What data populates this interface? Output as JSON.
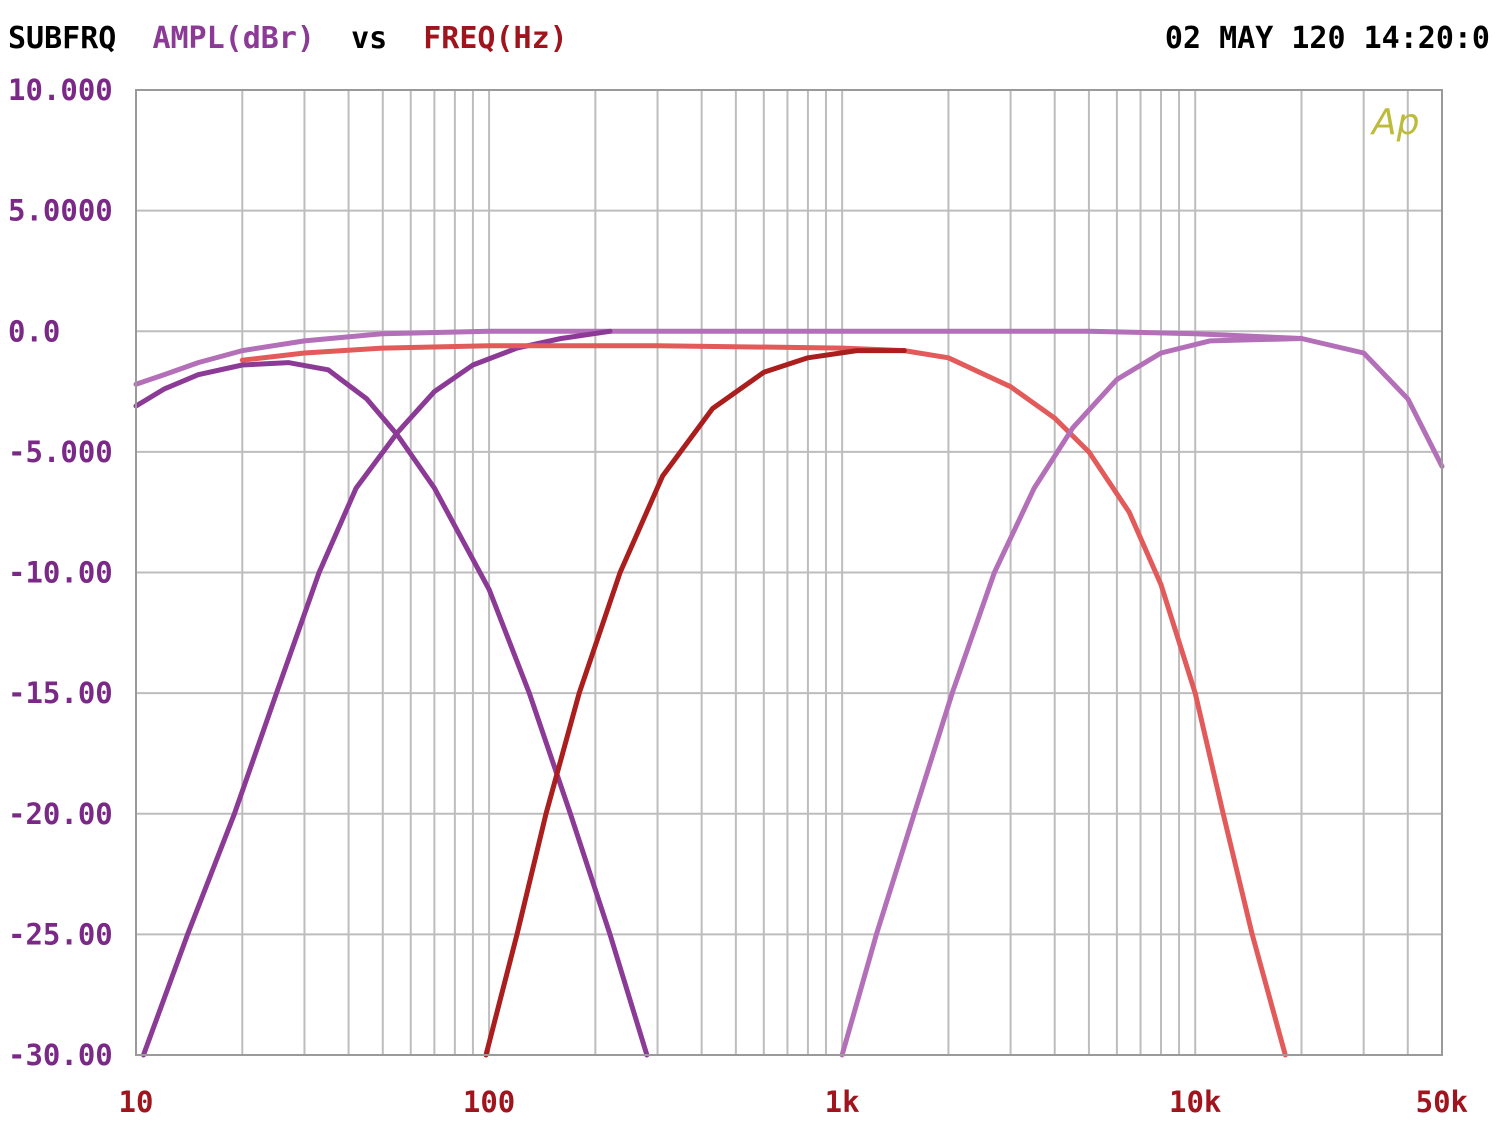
{
  "header": {
    "prefix": "SUBFRQ",
    "ylabel": "AMPL(dBr)",
    "vs": "vs",
    "xlabel": "FREQ(Hz)",
    "timestamp": "02 MAY 120 14:20:0"
  },
  "logo": "Ap",
  "colors": {
    "purple": "#8b3a96",
    "mauve": "#b36fb8",
    "red": "#e25a5a",
    "darkred": "#aa1e1e",
    "grid": "#bdbdbd",
    "ytext": "#7a2a86",
    "xtext": "#a0141e",
    "logo": "#bcbc3a"
  },
  "chart_data": {
    "type": "line",
    "xscale": "log",
    "xlim": [
      10,
      50000
    ],
    "ylim": [
      -30,
      10
    ],
    "grid": true,
    "xticks": [
      {
        "value": 10,
        "label": "10"
      },
      {
        "value": 100,
        "label": "100"
      },
      {
        "value": 1000,
        "label": "1k"
      },
      {
        "value": 10000,
        "label": "10k"
      },
      {
        "value": 50000,
        "label": "50k"
      }
    ],
    "yticks": [
      {
        "value": 10,
        "label": "10.000"
      },
      {
        "value": 5,
        "label": "5.0000"
      },
      {
        "value": 0,
        "label": "0.0"
      },
      {
        "value": -5,
        "label": "-5.000"
      },
      {
        "value": -10,
        "label": "-10.00"
      },
      {
        "value": -15,
        "label": "-15.00"
      },
      {
        "value": -20,
        "label": "-20.00"
      },
      {
        "value": -25,
        "label": "-25.00"
      },
      {
        "value": -30,
        "label": "-30.00"
      }
    ],
    "series": [
      {
        "color": "mauve",
        "points": [
          [
            10,
            -2.2
          ],
          [
            12,
            -1.8
          ],
          [
            15,
            -1.3
          ],
          [
            20,
            -0.8
          ],
          [
            30,
            -0.4
          ],
          [
            50,
            -0.1
          ],
          [
            100,
            0
          ],
          [
            1000,
            0
          ],
          [
            5000,
            0
          ],
          [
            10000,
            -0.1
          ],
          [
            20000,
            -0.3
          ],
          [
            30000,
            -0.9
          ],
          [
            40000,
            -2.8
          ],
          [
            50000,
            -5.6
          ]
        ]
      },
      {
        "color": "purple",
        "points": [
          [
            10,
            -3.1
          ],
          [
            12,
            -2.4
          ],
          [
            15,
            -1.8
          ],
          [
            20,
            -1.4
          ],
          [
            27,
            -1.3
          ],
          [
            35,
            -1.6
          ],
          [
            45,
            -2.8
          ],
          [
            55,
            -4.3
          ],
          [
            70,
            -6.5
          ],
          [
            100,
            -10.7
          ],
          [
            130,
            -15
          ],
          [
            170,
            -20
          ],
          [
            220,
            -25
          ],
          [
            280,
            -30
          ]
        ]
      },
      {
        "color": "purple",
        "points": [
          [
            10.5,
            -30
          ],
          [
            14,
            -25
          ],
          [
            19,
            -20
          ],
          [
            25,
            -15
          ],
          [
            33,
            -10
          ],
          [
            42,
            -6.5
          ],
          [
            55,
            -4.2
          ],
          [
            70,
            -2.5
          ],
          [
            90,
            -1.4
          ],
          [
            120,
            -0.7
          ],
          [
            160,
            -0.3
          ],
          [
            220,
            0
          ]
        ]
      },
      {
        "color": "red",
        "points": [
          [
            20,
            -1.2
          ],
          [
            30,
            -0.9
          ],
          [
            50,
            -0.7
          ],
          [
            100,
            -0.6
          ],
          [
            300,
            -0.6
          ],
          [
            1000,
            -0.7
          ],
          [
            1500,
            -0.8
          ],
          [
            2000,
            -1.1
          ],
          [
            3000,
            -2.3
          ],
          [
            4000,
            -3.6
          ],
          [
            5000,
            -5
          ],
          [
            6500,
            -7.5
          ],
          [
            8000,
            -10.5
          ],
          [
            10000,
            -15
          ],
          [
            12000,
            -20
          ],
          [
            14500,
            -25
          ],
          [
            18000,
            -30
          ]
        ]
      },
      {
        "color": "darkred",
        "points": [
          [
            98,
            -30
          ],
          [
            120,
            -25
          ],
          [
            145,
            -20
          ],
          [
            180,
            -15
          ],
          [
            235,
            -10
          ],
          [
            310,
            -6
          ],
          [
            430,
            -3.2
          ],
          [
            600,
            -1.7
          ],
          [
            800,
            -1.1
          ],
          [
            1100,
            -0.8
          ],
          [
            1500,
            -0.8
          ]
        ]
      },
      {
        "color": "mauve",
        "points": [
          [
            1000,
            -30
          ],
          [
            1250,
            -25
          ],
          [
            1600,
            -20
          ],
          [
            2050,
            -15
          ],
          [
            2700,
            -10
          ],
          [
            3500,
            -6.5
          ],
          [
            4500,
            -4
          ],
          [
            6000,
            -2
          ],
          [
            8000,
            -0.9
          ],
          [
            11000,
            -0.4
          ],
          [
            20000,
            -0.3
          ]
        ]
      }
    ]
  }
}
